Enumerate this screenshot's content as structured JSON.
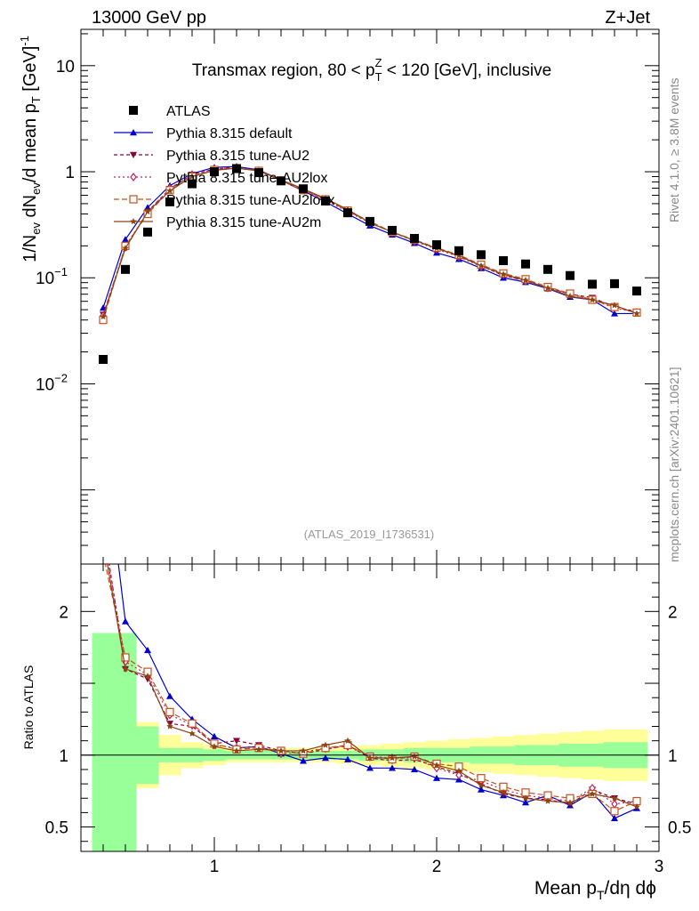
{
  "header": {
    "left": "13000 GeV pp",
    "right": "Z+Jet"
  },
  "side": {
    "rivet": "Rivet 4.1.0, ≥ 3.8M events",
    "mcplots": "mcplots.cern.ch [arXiv:2401.10621]"
  },
  "chart_data": {
    "type": "scatter",
    "title": "Transmax region, 80 < p_T^Z < 120 [GeV], inclusive",
    "title_parts": {
      "pre": "Transmax region, 80 < p",
      "sup": "Z",
      "sub": "T",
      "post": " < 120 [GeV], inclusive"
    },
    "watermark": "(ATLAS_2019_I1736531)",
    "xlabel": "Mean p_T/dη dϕ",
    "xlabel_parts": {
      "pre": "Mean p",
      "sub": "T",
      "post": "/dη dϕ"
    },
    "ylabel": "1/N_ev dN_ev/d mean p_T [GeV]^-1",
    "ylabel_parts": {
      "a": "1/N",
      "a_sub": "ev",
      "b": " dN",
      "b_sub": "ev",
      "c": "/d mean p",
      "c_sub": "T",
      "d": " [GeV]",
      "d_sup": "-1"
    },
    "ratio_ylabel": "Ratio to ATLAS",
    "xlim": [
      0.4,
      3.0
    ],
    "ylim": [
      0.0002,
      22
    ],
    "yscale": "log",
    "ratio_ylim": [
      0.33,
      2.33
    ],
    "x_ticks": [
      "1",
      "2",
      "3"
    ],
    "x_tick_values": [
      1,
      2,
      3
    ],
    "y_ticks": [
      {
        "value": 10,
        "base": "10",
        "exp": ""
      },
      {
        "value": 1,
        "base": "1",
        "exp": ""
      },
      {
        "value": 0.1,
        "base": "10",
        "exp": "−1"
      },
      {
        "value": 0.01,
        "base": "10",
        "exp": "−2"
      }
    ],
    "ratio_ticks": [
      "0.5",
      "1",
      "2"
    ],
    "ratio_tick_values": [
      0.5,
      1,
      2
    ],
    "x": [
      0.5,
      0.6,
      0.7,
      0.8,
      0.9,
      1.0,
      1.1,
      1.2,
      1.3,
      1.4,
      1.5,
      1.6,
      1.7,
      1.8,
      1.9,
      2.0,
      2.1,
      2.2,
      2.3,
      2.4,
      2.5,
      2.6,
      2.7,
      2.8,
      2.9
    ],
    "reference": {
      "name": "ATLAS",
      "values": [
        0.017,
        0.12,
        0.27,
        0.52,
        0.77,
        1.0,
        1.07,
        0.98,
        0.82,
        0.69,
        0.53,
        0.41,
        0.34,
        0.28,
        0.235,
        0.205,
        0.18,
        0.165,
        0.145,
        0.135,
        0.12,
        0.105,
        0.087,
        0.088,
        0.075
      ],
      "band_inner": [
        0.85,
        0.85,
        0.2,
        0.05,
        0.05,
        0.04,
        0.03,
        0.03,
        0.03,
        0.03,
        0.03,
        0.03,
        0.04,
        0.04,
        0.05,
        0.05,
        0.05,
        0.06,
        0.06,
        0.07,
        0.07,
        0.08,
        0.08,
        0.09,
        0.09
      ],
      "band_outer": [
        0.85,
        0.85,
        0.23,
        0.14,
        0.09,
        0.07,
        0.05,
        0.05,
        0.05,
        0.05,
        0.05,
        0.06,
        0.07,
        0.08,
        0.09,
        0.1,
        0.11,
        0.12,
        0.13,
        0.14,
        0.15,
        0.16,
        0.17,
        0.18,
        0.18
      ]
    },
    "series": [
      {
        "name": "Pythia 8.315 default",
        "color": "#0000cc",
        "marker": "triangle-up",
        "dash": "",
        "values": [
          0.052,
          0.23,
          0.46,
          0.74,
          0.96,
          1.1,
          1.12,
          1.04,
          0.83,
          0.66,
          0.52,
          0.4,
          0.31,
          0.255,
          0.212,
          0.172,
          0.15,
          0.123,
          0.1,
          0.091,
          0.079,
          0.066,
          0.062,
          0.046,
          0.046
        ],
        "ratio": [
          3.2,
          1.93,
          1.73,
          1.41,
          1.25,
          1.13,
          1.05,
          1.06,
          1.01,
          0.96,
          0.98,
          0.97,
          0.91,
          0.91,
          0.9,
          0.84,
          0.83,
          0.76,
          0.72,
          0.67,
          0.72,
          0.65,
          0.74,
          0.56,
          0.63
        ]
      },
      {
        "name": "Pythia 8.315 tune-AU2",
        "color": "#8b003c",
        "marker": "triangle-down",
        "dash": "4,3",
        "values": [
          0.045,
          0.19,
          0.42,
          0.69,
          0.94,
          1.06,
          1.1,
          1.03,
          0.84,
          0.68,
          0.55,
          0.43,
          0.33,
          0.27,
          0.224,
          0.19,
          0.16,
          0.13,
          0.105,
          0.094,
          0.081,
          0.07,
          0.065,
          0.053,
          0.048
        ],
        "ratio": [
          2.6,
          1.6,
          1.53,
          1.22,
          1.2,
          1.08,
          1.1,
          1.07,
          1.03,
          1.01,
          1.04,
          1.07,
          0.98,
          0.96,
          0.97,
          0.92,
          0.87,
          0.8,
          0.73,
          0.7,
          0.69,
          0.66,
          0.76,
          0.7,
          0.66
        ]
      },
      {
        "name": "Pythia 8.315 tune-AU2lox",
        "color": "#c22060",
        "marker": "diamond-open",
        "dash": "2,3",
        "values": [
          0.044,
          0.2,
          0.41,
          0.7,
          0.93,
          1.06,
          1.1,
          1.02,
          0.83,
          0.67,
          0.54,
          0.42,
          0.33,
          0.27,
          0.222,
          0.186,
          0.158,
          0.128,
          0.107,
          0.093,
          0.08,
          0.07,
          0.062,
          0.052,
          0.047
        ],
        "ratio": [
          2.55,
          1.65,
          1.56,
          1.28,
          1.21,
          1.07,
          1.05,
          1.06,
          1.01,
          1.02,
          1.05,
          1.06,
          0.99,
          0.98,
          0.98,
          0.91,
          0.86,
          0.82,
          0.76,
          0.72,
          0.7,
          0.68,
          0.77,
          0.66,
          0.68
        ]
      },
      {
        "name": "Pythia 8.315 tune-AU2loxx",
        "color": "#c8501e",
        "marker": "square-open",
        "dash": "6,3",
        "values": [
          0.04,
          0.2,
          0.4,
          0.67,
          0.9,
          1.04,
          1.08,
          1.02,
          0.82,
          0.67,
          0.55,
          0.43,
          0.34,
          0.27,
          0.228,
          0.192,
          0.164,
          0.133,
          0.11,
          0.097,
          0.082,
          0.071,
          0.062,
          0.053,
          0.047
        ],
        "ratio": [
          2.4,
          1.68,
          1.58,
          1.3,
          1.22,
          1.08,
          1.04,
          1.05,
          1.03,
          1.01,
          1.05,
          1.07,
          0.99,
          0.97,
          0.99,
          0.94,
          0.92,
          0.84,
          0.78,
          0.74,
          0.72,
          0.7,
          0.73,
          0.61,
          0.68
        ]
      },
      {
        "name": "Pythia 8.315 tune-AU2m",
        "color": "#8b4513",
        "marker": "star",
        "dash": "",
        "values": [
          0.043,
          0.19,
          0.42,
          0.66,
          0.9,
          1.03,
          1.08,
          1.02,
          0.84,
          0.69,
          0.56,
          0.44,
          0.33,
          0.27,
          0.225,
          0.19,
          0.162,
          0.13,
          0.108,
          0.095,
          0.08,
          0.067,
          0.062,
          0.055,
          0.046
        ],
        "ratio": [
          2.5,
          1.6,
          1.55,
          1.2,
          1.15,
          1.06,
          1.03,
          1.04,
          1.03,
          1.03,
          1.07,
          1.1,
          0.98,
          0.98,
          0.99,
          0.93,
          0.89,
          0.79,
          0.74,
          0.7,
          0.68,
          0.67,
          0.73,
          0.7,
          0.64
        ]
      }
    ]
  }
}
